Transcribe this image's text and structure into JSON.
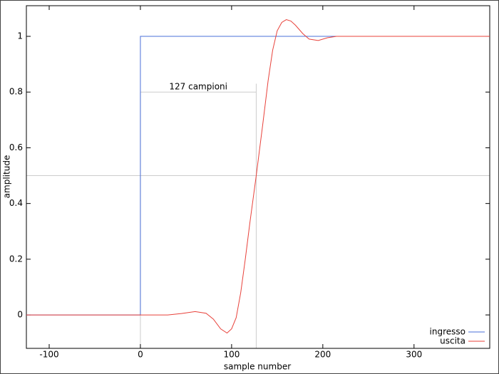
{
  "chart_data": {
    "type": "line",
    "xlabel": "sample number",
    "ylabel": "amplitude",
    "xlim": [
      -125,
      383
    ],
    "ylim": [
      -0.12,
      1.11
    ],
    "xticks": [
      -100,
      0,
      100,
      200,
      300
    ],
    "yticks": [
      0,
      0.2,
      0.4,
      0.6,
      0.8,
      1
    ],
    "grid": false,
    "legend": "lower right",
    "series": [
      {
        "name": "ingresso",
        "color": "#4a6fd8",
        "x": [
          -125,
          0,
          0,
          383
        ],
        "values": [
          0,
          0,
          1,
          1
        ]
      },
      {
        "name": "uscita",
        "color": "#e8413a",
        "x": [
          -125,
          0,
          30,
          45,
          60,
          72,
          80,
          88,
          95,
          100,
          105,
          110,
          115,
          120,
          127,
          134,
          140,
          145,
          150,
          155,
          160,
          165,
          170,
          178,
          185,
          195,
          205,
          215,
          230,
          383
        ],
        "values": [
          0,
          0,
          0,
          0.005,
          0.012,
          0.006,
          -0.015,
          -0.05,
          -0.065,
          -0.05,
          -0.01,
          0.08,
          0.2,
          0.33,
          0.5,
          0.68,
          0.84,
          0.95,
          1.02,
          1.05,
          1.06,
          1.055,
          1.04,
          1.01,
          0.99,
          0.985,
          0.995,
          1,
          1,
          1
        ]
      }
    ],
    "reference_lines": {
      "hline": 0.5,
      "vline": 127,
      "vline_top": 0.83,
      "bracket": {
        "x": [
          0,
          127
        ],
        "y": 0.8,
        "label": "127 campioni"
      }
    }
  }
}
